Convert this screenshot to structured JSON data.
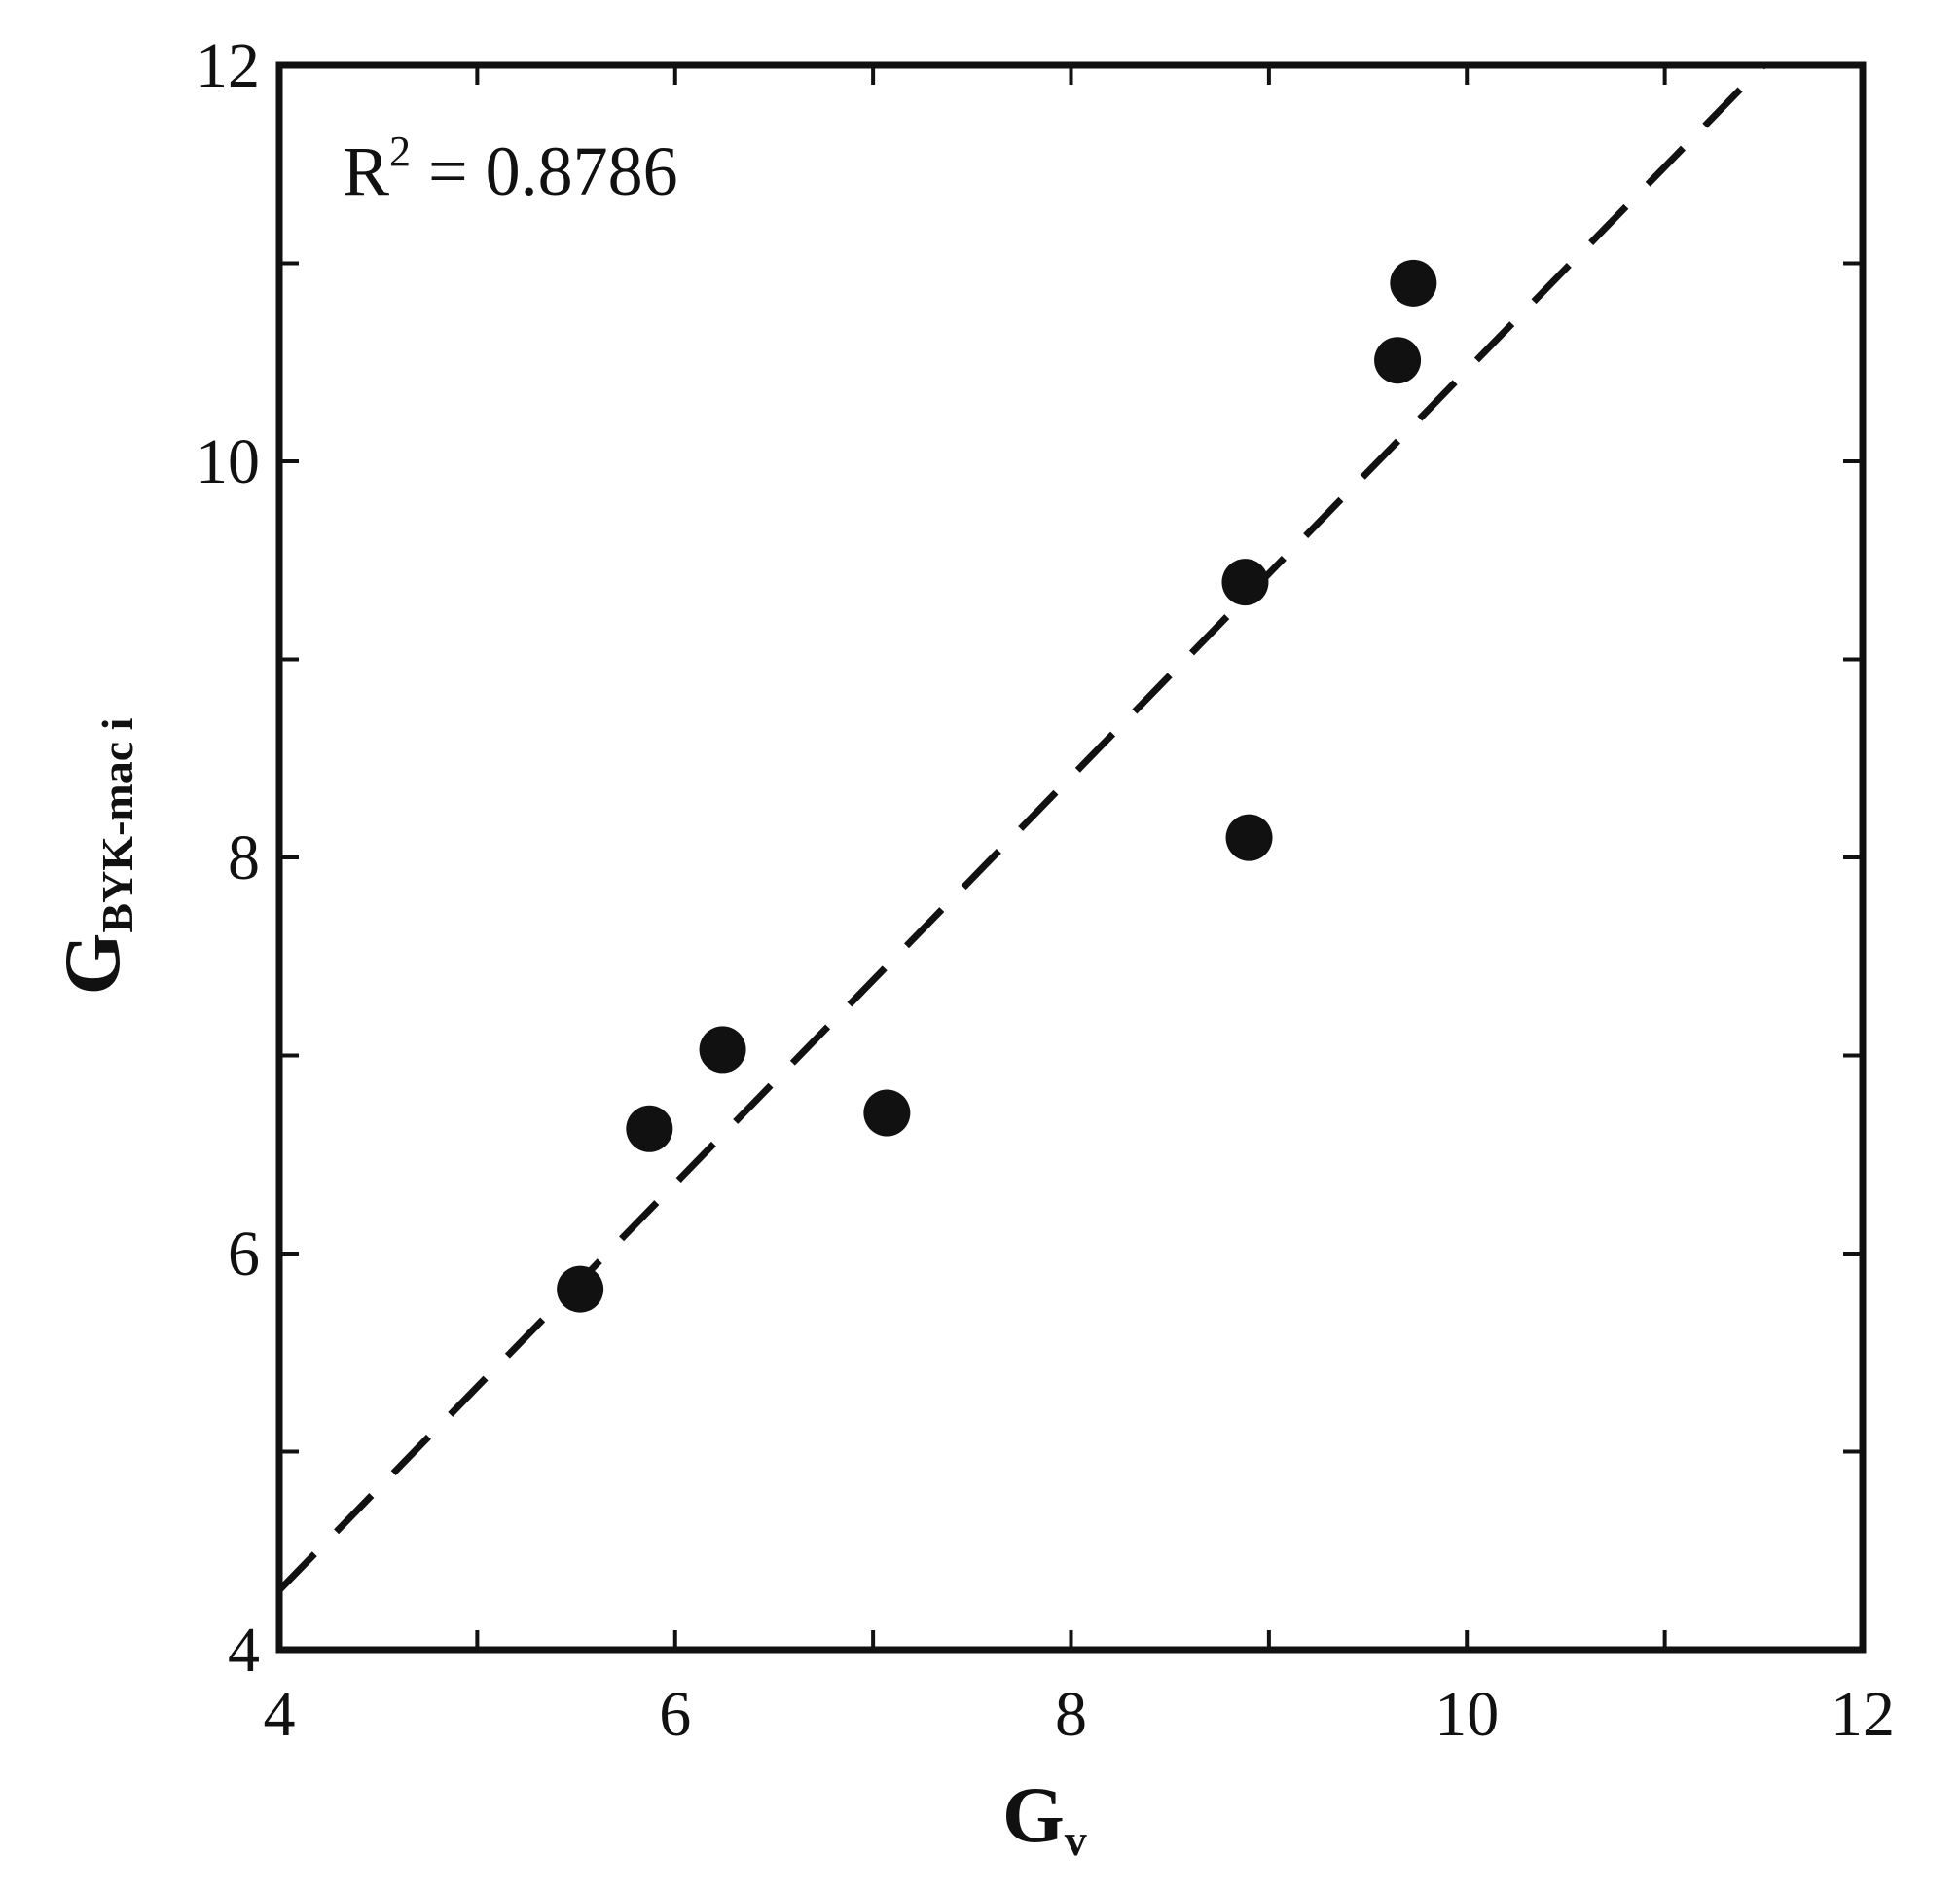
{
  "chart_data": {
    "type": "scatter",
    "x_axis": {
      "label_main": "G",
      "label_sub": "v",
      "range": [
        4,
        12
      ],
      "ticks": [
        4,
        6,
        8,
        10,
        12
      ],
      "tick_labels": [
        "4",
        "6",
        "8",
        "10",
        "12"
      ]
    },
    "y_axis": {
      "label_main": "G",
      "label_sub": "BYK-mac i",
      "range": [
        4,
        12
      ],
      "ticks": [
        4,
        6,
        8,
        10,
        12
      ],
      "tick_labels": [
        "4",
        "6",
        "8",
        "10",
        "12"
      ]
    },
    "grid": false,
    "annotation": {
      "prefix": "R",
      "superscript": "2",
      "value_text": " = 0.8786"
    },
    "series": [
      {
        "type": "scatter",
        "marker": "filled-circle",
        "color": "#111111",
        "points": [
          {
            "x": 5.52,
            "y": 5.82
          },
          {
            "x": 5.87,
            "y": 6.63
          },
          {
            "x": 6.24,
            "y": 7.03
          },
          {
            "x": 7.07,
            "y": 6.71
          },
          {
            "x": 8.88,
            "y": 9.39
          },
          {
            "x": 8.9,
            "y": 8.1
          },
          {
            "x": 9.65,
            "y": 10.51
          },
          {
            "x": 9.73,
            "y": 10.9
          }
        ]
      },
      {
        "type": "line",
        "style": "dashed",
        "color": "#111111",
        "points": [
          {
            "x": 4.0,
            "y": 4.3
          },
          {
            "x": 11.5,
            "y": 12.0
          }
        ]
      }
    ]
  }
}
